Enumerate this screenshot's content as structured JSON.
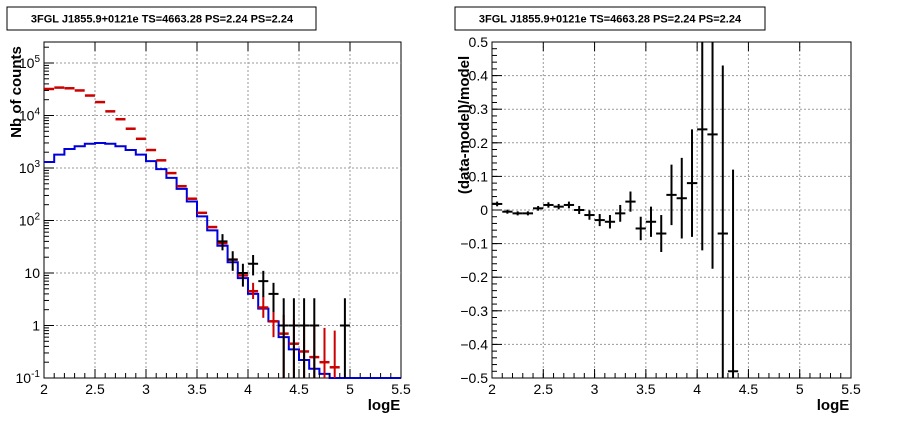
{
  "colors": {
    "data": "#000000",
    "model_total": "#cc0000",
    "model_source": "#0000dd",
    "grid": "#9a9a9a"
  },
  "chart_data": [
    {
      "type": "line",
      "title": "3FGL J1855.9+0121e TS=4663.28 PS=2.24 PS=2.24",
      "xlabel": "logE",
      "ylabel": "Nb of counts",
      "xlim": [
        2.0,
        5.5
      ],
      "ylim": [
        0.1,
        250000
      ],
      "yscale": "log",
      "grid": true,
      "x_ticks": [
        "2",
        "2.5",
        "3",
        "3.5",
        "4",
        "4.5",
        "5",
        "5.5"
      ],
      "y_ticks": [
        {
          "base": "10",
          "exp": "-1"
        },
        {
          "base": "1",
          "exp": ""
        },
        {
          "base": "10",
          "exp": ""
        },
        {
          "base": "10",
          "exp": "2"
        },
        {
          "base": "10",
          "exp": "3"
        },
        {
          "base": "10",
          "exp": "4"
        },
        {
          "base": "10",
          "exp": "5"
        }
      ],
      "bin_edges": [
        2.0,
        2.1,
        2.2,
        2.3,
        2.4,
        2.5,
        2.6,
        2.7,
        2.8,
        2.9,
        3.0,
        3.1,
        3.2,
        3.3,
        3.4,
        3.5,
        3.6,
        3.7,
        3.8,
        3.9,
        4.0,
        4.1,
        4.2,
        4.3,
        4.4,
        4.5,
        4.6,
        4.7,
        4.8,
        4.9,
        5.0,
        5.1,
        5.2,
        5.3,
        5.4,
        5.5
      ],
      "series": [
        {
          "name": "",
          "style": "step",
          "color": "#0000dd",
          "values": [
            1300,
            1800,
            2300,
            2600,
            2900,
            3000,
            2900,
            2600,
            2200,
            1800,
            1350,
            950,
            650,
            400,
            230,
            120,
            65,
            33,
            16,
            8,
            4,
            2.1,
            1.2,
            0.6,
            0.35,
            0.22,
            0.15,
            0.12,
            0.1,
            0.1,
            0.1,
            0.1,
            0.1,
            0.1,
            0.1
          ]
        },
        {
          "name": "",
          "style": "markers",
          "color": "#cc0000",
          "x": [
            2.05,
            2.15,
            2.25,
            2.35,
            2.45,
            2.55,
            2.65,
            2.75,
            2.85,
            2.95,
            3.05,
            3.15,
            3.25,
            3.35,
            3.45,
            3.55,
            3.65,
            3.75,
            3.85,
            3.95,
            4.05,
            4.15,
            4.25,
            4.35,
            4.45,
            4.55,
            4.65,
            4.75,
            4.85
          ],
          "y": [
            32000,
            34000,
            33000,
            30000,
            24000,
            18000,
            12000,
            8500,
            5600,
            3600,
            2200,
            1400,
            800,
            450,
            260,
            140,
            75,
            37,
            18,
            9,
            4.5,
            2.2,
            1.2,
            0.7,
            0.45,
            0.32,
            0.25,
            0.2,
            0.16
          ],
          "err_low": [
            null,
            null,
            null,
            null,
            null,
            null,
            null,
            null,
            null,
            null,
            null,
            null,
            null,
            null,
            null,
            null,
            null,
            null,
            null,
            null,
            3.2,
            1.4,
            0.6,
            0.1,
            0.1,
            0.1,
            0.1,
            0.1,
            0.1
          ],
          "err_high": [
            null,
            null,
            null,
            null,
            null,
            null,
            null,
            null,
            null,
            null,
            null,
            null,
            null,
            null,
            null,
            null,
            null,
            null,
            null,
            null,
            6.5,
            3.6,
            2.3,
            1.6,
            1.3,
            1.1,
            1.0,
            0.9,
            0.8
          ]
        },
        {
          "name": "",
          "style": "errorbars",
          "color": "#000000",
          "x": [
            3.75,
            3.85,
            3.95,
            4.05,
            4.15,
            4.25,
            4.35,
            4.45,
            4.55,
            4.65,
            4.95
          ],
          "y": [
            40,
            18,
            10,
            15,
            7,
            4,
            1,
            1,
            1,
            1,
            1
          ],
          "err_low": [
            27,
            11,
            5.5,
            9,
            3.5,
            1.8,
            0.1,
            0.1,
            0.1,
            0.1,
            0.1
          ],
          "err_high": [
            55,
            26,
            15,
            22,
            11,
            6.5,
            3.3,
            3.3,
            3.3,
            3.3,
            3.3
          ]
        }
      ]
    },
    {
      "type": "scatter",
      "title": "3FGL J1855.9+0121e TS=4663.28 PS=2.24 PS=2.24",
      "xlabel": "logE",
      "ylabel": "(data-model)/model",
      "xlim": [
        2.0,
        5.5
      ],
      "ylim": [
        -0.5,
        0.5
      ],
      "grid": true,
      "x_ticks": [
        "2",
        "2.5",
        "3",
        "3.5",
        "4",
        "4.5",
        "5",
        "5.5"
      ],
      "y_ticks": [
        "−0.5",
        "−0.4",
        "−0.3",
        "−0.2",
        "−0.1",
        "0",
        "0.1",
        "0.2",
        "0.3",
        "0.4",
        "0.5"
      ],
      "series": [
        {
          "name": "",
          "color": "#000000",
          "x": [
            2.05,
            2.15,
            2.25,
            2.35,
            2.45,
            2.55,
            2.65,
            2.75,
            2.85,
            2.95,
            3.05,
            3.15,
            3.25,
            3.35,
            3.45,
            3.55,
            3.65,
            3.75,
            3.85,
            3.95,
            4.05,
            4.15,
            4.25,
            4.35
          ],
          "y": [
            0.018,
            -0.005,
            -0.01,
            -0.01,
            0.005,
            0.015,
            0.01,
            0.015,
            0.0,
            -0.015,
            -0.03,
            -0.035,
            -0.01,
            0.025,
            -0.055,
            -0.035,
            -0.07,
            0.045,
            0.035,
            0.08,
            0.24,
            0.225,
            -0.07,
            -0.48
          ],
          "err": [
            0.007,
            0.006,
            0.006,
            0.006,
            0.007,
            0.008,
            0.008,
            0.01,
            0.012,
            0.014,
            0.018,
            0.02,
            0.025,
            0.03,
            0.035,
            0.045,
            0.055,
            0.09,
            0.12,
            0.16,
            0.36,
            0.4,
            0.5,
            0.6
          ],
          "xerr": 0.05
        }
      ]
    }
  ]
}
